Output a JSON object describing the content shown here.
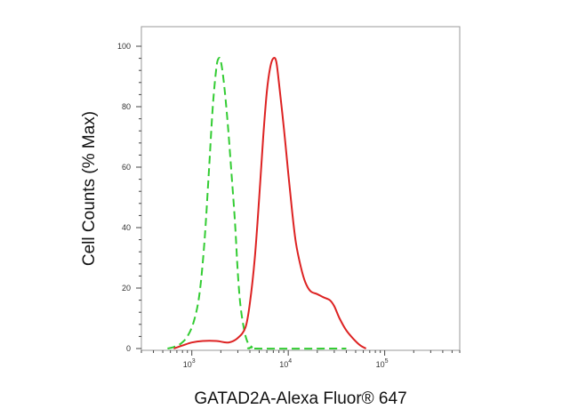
{
  "chart_data": {
    "type": "line",
    "title": "",
    "xlabel": "GATAD2A-Alexa Fluor® 647",
    "ylabel": "Cell Counts (% Max)",
    "x_scale": "log",
    "xlim": [
      300,
      600000
    ],
    "ylim": [
      0,
      100
    ],
    "grid": false,
    "legend": "none",
    "y_ticks": [
      0,
      20,
      40,
      60,
      80,
      100
    ],
    "x_ticks": [
      {
        "value": 1000,
        "base": "10",
        "exp": "3"
      },
      {
        "value": 10000,
        "base": "10",
        "exp": "4"
      },
      {
        "value": 100000,
        "base": "10",
        "exp": "5"
      }
    ],
    "series": [
      {
        "color": "#33cc33",
        "style": "dashed",
        "points": [
          [
            560,
            0
          ],
          [
            650,
            0.5
          ],
          [
            760,
            1.5
          ],
          [
            900,
            4
          ],
          [
            1050,
            9
          ],
          [
            1200,
            18
          ],
          [
            1350,
            35
          ],
          [
            1500,
            58
          ],
          [
            1650,
            80
          ],
          [
            1800,
            93
          ],
          [
            1900,
            96
          ],
          [
            2000,
            95
          ],
          [
            2150,
            88
          ],
          [
            2350,
            75
          ],
          [
            2550,
            60
          ],
          [
            2800,
            42
          ],
          [
            3000,
            25
          ],
          [
            3200,
            14
          ],
          [
            3500,
            6
          ],
          [
            3800,
            2
          ],
          [
            4200,
            0.5
          ],
          [
            4600,
            0
          ],
          [
            40000,
            0
          ]
        ]
      },
      {
        "color": "#dd2222",
        "style": "solid",
        "points": [
          [
            650,
            0
          ],
          [
            800,
            1
          ],
          [
            1000,
            2
          ],
          [
            1300,
            2.5
          ],
          [
            1800,
            2.5
          ],
          [
            2400,
            2
          ],
          [
            3000,
            3.5
          ],
          [
            3600,
            7
          ],
          [
            4000,
            15
          ],
          [
            4500,
            30
          ],
          [
            5000,
            50
          ],
          [
            5500,
            70
          ],
          [
            6000,
            85
          ],
          [
            6500,
            93
          ],
          [
            7000,
            96
          ],
          [
            7500,
            95
          ],
          [
            8000,
            88
          ],
          [
            9000,
            73
          ],
          [
            10000,
            58
          ],
          [
            11000,
            45
          ],
          [
            12000,
            35
          ],
          [
            13500,
            27
          ],
          [
            15000,
            22
          ],
          [
            17000,
            19
          ],
          [
            20000,
            18
          ],
          [
            23000,
            17
          ],
          [
            27000,
            16
          ],
          [
            30000,
            14
          ],
          [
            34000,
            10
          ],
          [
            40000,
            6
          ],
          [
            48000,
            3
          ],
          [
            56000,
            1
          ],
          [
            64000,
            0
          ]
        ]
      }
    ]
  }
}
